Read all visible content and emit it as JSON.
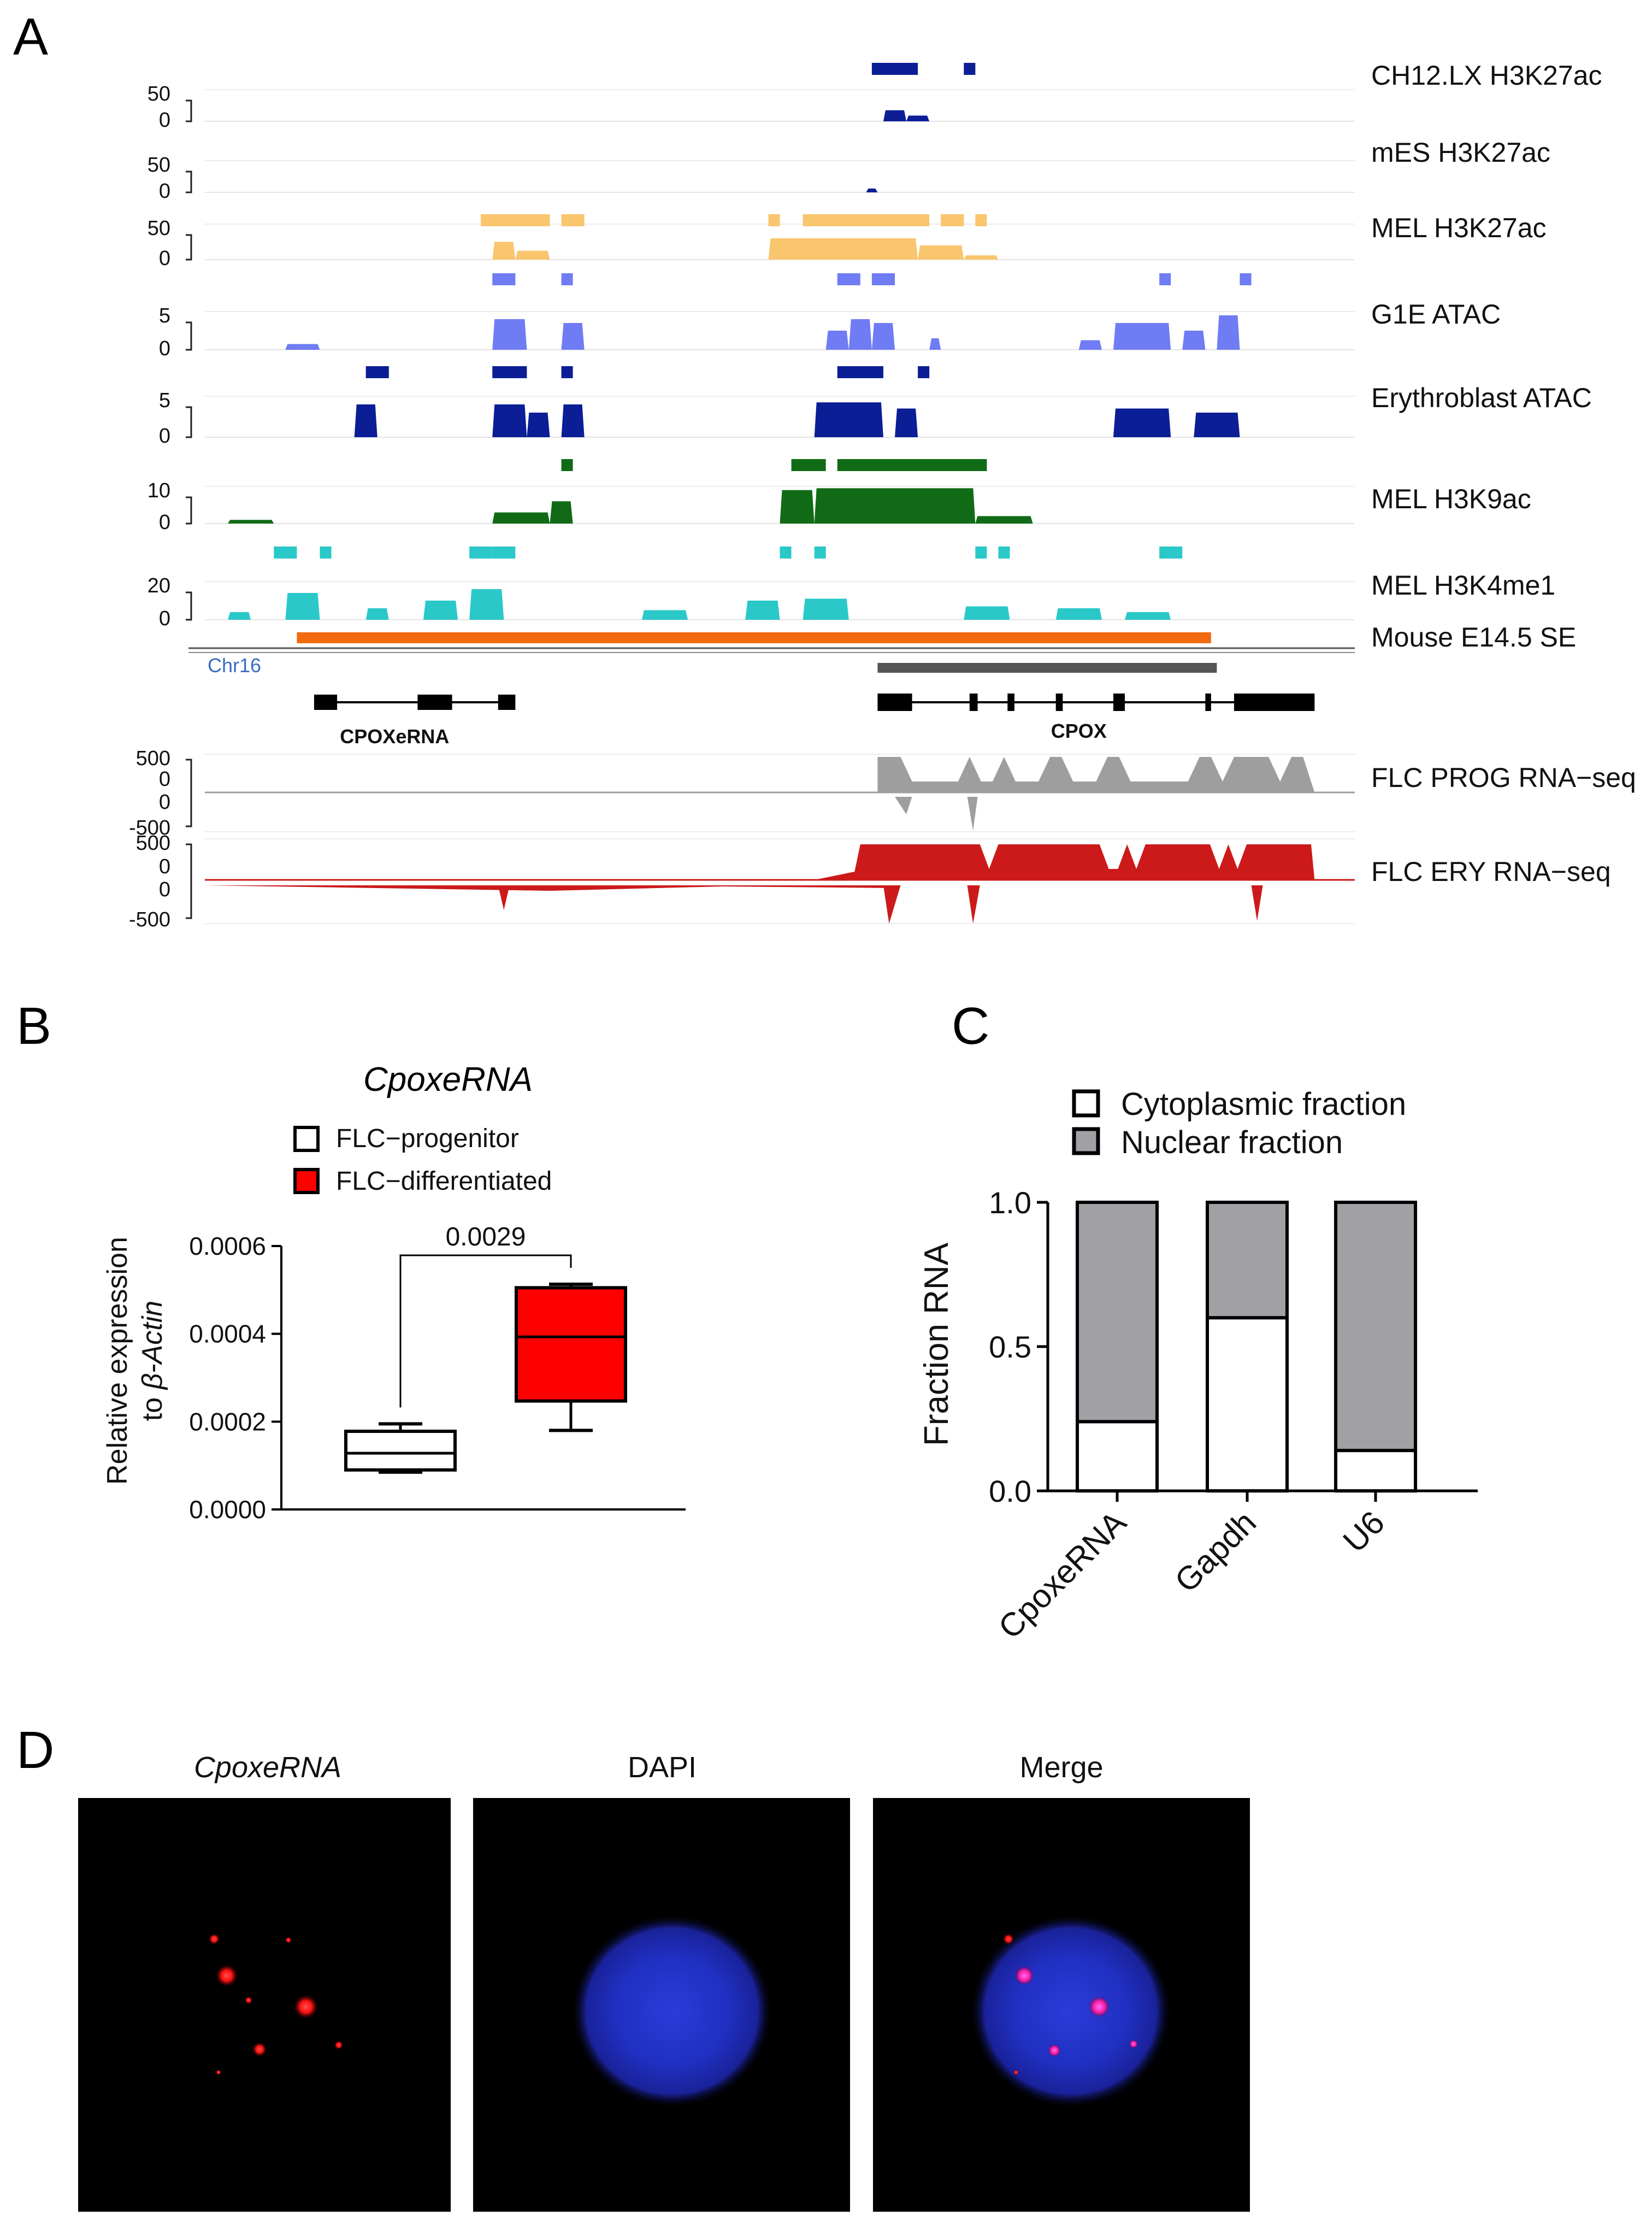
{
  "panels": {
    "a": {
      "letter": "A"
    },
    "b": {
      "letter": "B"
    },
    "c": {
      "letter": "C"
    },
    "d": {
      "letter": "D"
    }
  },
  "chart_data": [
    {
      "type": "genome_browser",
      "panel": "A",
      "tracks": [
        {
          "name": "CH12.LX H3K27ac",
          "scale": [
            "50",
            "0"
          ],
          "color": "#0b1e96",
          "peaks": [
            [
              0.59,
              0.61,
              0.35
            ],
            [
              0.61,
              0.63,
              0.18
            ]
          ],
          "calls": [
            [
              0.58,
              0.62
            ],
            [
              0.66,
              0.67
            ]
          ]
        },
        {
          "name": "mES H3K27ac",
          "scale": [
            "50",
            "0"
          ],
          "color": "#0b1e96",
          "peaks": [
            [
              0.575,
              0.585,
              0.12
            ]
          ],
          "calls": []
        },
        {
          "name": "MEL H3K27ac",
          "scale": [
            "50",
            "0"
          ],
          "color": "#f9c66e",
          "peaks": [
            [
              0.25,
              0.27,
              0.5
            ],
            [
              0.27,
              0.3,
              0.25
            ],
            [
              0.49,
              0.62,
              0.6
            ],
            [
              0.62,
              0.66,
              0.4
            ],
            [
              0.66,
              0.69,
              0.12
            ]
          ],
          "calls": [
            [
              0.24,
              0.3
            ],
            [
              0.31,
              0.33
            ],
            [
              0.49,
              0.5
            ],
            [
              0.52,
              0.63
            ],
            [
              0.64,
              0.66
            ],
            [
              0.67,
              0.68
            ]
          ]
        },
        {
          "name": "G1E ATAC",
          "scale": [
            "5",
            "0"
          ],
          "color": "#6f7cf4",
          "peaks": [
            [
              0.07,
              0.1,
              0.15
            ],
            [
              0.25,
              0.28,
              0.8
            ],
            [
              0.31,
              0.33,
              0.7
            ],
            [
              0.54,
              0.56,
              0.5
            ],
            [
              0.56,
              0.58,
              0.8
            ],
            [
              0.58,
              0.6,
              0.7
            ],
            [
              0.63,
              0.64,
              0.3
            ],
            [
              0.76,
              0.78,
              0.25
            ],
            [
              0.79,
              0.84,
              0.7
            ],
            [
              0.85,
              0.87,
              0.5
            ],
            [
              0.88,
              0.9,
              0.9
            ]
          ],
          "calls": [
            [
              0.25,
              0.27
            ],
            [
              0.31,
              0.32
            ],
            [
              0.55,
              0.57
            ],
            [
              0.58,
              0.6
            ],
            [
              0.83,
              0.84
            ],
            [
              0.9,
              0.91
            ]
          ]
        },
        {
          "name": "Erythroblast ATAC",
          "scale": [
            "5",
            "0"
          ],
          "color": "#0b1e96",
          "peaks": [
            [
              0.13,
              0.15,
              0.8
            ],
            [
              0.25,
              0.28,
              0.8
            ],
            [
              0.28,
              0.3,
              0.6
            ],
            [
              0.31,
              0.33,
              0.8
            ],
            [
              0.53,
              0.59,
              0.85
            ],
            [
              0.6,
              0.62,
              0.7
            ],
            [
              0.79,
              0.84,
              0.7
            ],
            [
              0.86,
              0.9,
              0.6
            ]
          ],
          "calls": [
            [
              0.14,
              0.16
            ],
            [
              0.25,
              0.28
            ],
            [
              0.31,
              0.32
            ],
            [
              0.55,
              0.59
            ],
            [
              0.62,
              0.63
            ]
          ]
        },
        {
          "name": "MEL H3K9ac",
          "scale": [
            "10",
            "0"
          ],
          "color": "#116b16",
          "peaks": [
            [
              0.02,
              0.06,
              0.1
            ],
            [
              0.25,
              0.3,
              0.3
            ],
            [
              0.3,
              0.32,
              0.6
            ],
            [
              0.5,
              0.53,
              0.9
            ],
            [
              0.53,
              0.67,
              0.95
            ],
            [
              0.67,
              0.72,
              0.2
            ]
          ],
          "calls": [
            [
              0.31,
              0.32
            ],
            [
              0.51,
              0.54
            ],
            [
              0.55,
              0.68
            ]
          ]
        },
        {
          "name": "MEL H3K4me1",
          "scale": [
            "20",
            "0"
          ],
          "color": "#2ac8c8",
          "peaks": [
            [
              0.02,
              0.04,
              0.2
            ],
            [
              0.07,
              0.1,
              0.7
            ],
            [
              0.14,
              0.16,
              0.3
            ],
            [
              0.19,
              0.22,
              0.5
            ],
            [
              0.23,
              0.26,
              0.8
            ],
            [
              0.38,
              0.42,
              0.25
            ],
            [
              0.47,
              0.5,
              0.5
            ],
            [
              0.52,
              0.56,
              0.55
            ],
            [
              0.66,
              0.7,
              0.35
            ],
            [
              0.74,
              0.78,
              0.3
            ],
            [
              0.8,
              0.84,
              0.2
            ]
          ],
          "calls": [
            [
              0.06,
              0.08
            ],
            [
              0.1,
              0.11
            ],
            [
              0.23,
              0.25
            ],
            [
              0.25,
              0.27
            ],
            [
              0.5,
              0.51
            ],
            [
              0.53,
              0.54
            ],
            [
              0.67,
              0.68
            ],
            [
              0.69,
              0.7
            ],
            [
              0.83,
              0.85
            ]
          ]
        },
        {
          "name": "Mouse E14.5 SE",
          "color": "#f26b10",
          "span": [
            0.08,
            0.875
          ]
        }
      ],
      "chromosome": "Chr16",
      "genes": [
        {
          "name": "CPOXeRNA",
          "span": [
            0.095,
            0.27
          ]
        },
        {
          "name": "CPOX",
          "span": [
            0.585,
            0.965
          ]
        }
      ],
      "rna_tracks": [
        {
          "name": "FLC PROG RNA−seq",
          "scale": [
            "500",
            "0",
            "0",
            "-500"
          ],
          "color": "#9e9e9e"
        },
        {
          "name": "FLC ERY RNA−seq",
          "scale": [
            "500",
            "0",
            "0",
            "-500"
          ],
          "color": "#cc1a1a"
        }
      ]
    },
    {
      "type": "box",
      "panel": "B",
      "title": "CpoxeRNA",
      "ylabel_line1": "Relative expression",
      "ylabel_line2_prefix": "to ",
      "ylabel_line2_italic": "β-Actin",
      "ylim": [
        0,
        0.0006
      ],
      "yticks": [
        0,
        0.0002,
        0.0004,
        0.0006
      ],
      "ytick_labels": [
        "0.0000",
        "0.0002",
        "0.0004",
        "0.0006"
      ],
      "series": [
        {
          "name": "FLC−progenitor",
          "color": "#ffffff",
          "min": 8.5e-05,
          "q1": 9e-05,
          "median": 0.000128,
          "q3": 0.000178,
          "max": 0.000195
        },
        {
          "name": "FLC−differentiated",
          "color": "#ff0000",
          "min": 0.00018,
          "q1": 0.000247,
          "median": 0.000393,
          "q3": 0.000505,
          "max": 0.000513
        }
      ],
      "significance": "0.0029"
    },
    {
      "type": "bar",
      "stacked": true,
      "panel": "C",
      "categories": [
        "CpoxeRNA",
        "Gapdh",
        "U6"
      ],
      "series": [
        {
          "name": "Cytoplasmic fraction",
          "color": "#ffffff",
          "values": [
            0.24,
            0.6,
            0.14
          ]
        },
        {
          "name": "Nuclear fraction",
          "color": "#a0a0a5",
          "values": [
            0.76,
            0.4,
            0.86
          ]
        }
      ],
      "ylabel": "Fraction RNA",
      "ylim": [
        0,
        1.0
      ],
      "yticks": [
        0,
        0.5,
        1.0
      ],
      "ytick_labels": [
        "0.0",
        "0.5",
        "1.0"
      ]
    }
  ],
  "microscopy": {
    "titles": [
      "CpoxeRNA",
      "DAPI",
      "Merge"
    ]
  }
}
